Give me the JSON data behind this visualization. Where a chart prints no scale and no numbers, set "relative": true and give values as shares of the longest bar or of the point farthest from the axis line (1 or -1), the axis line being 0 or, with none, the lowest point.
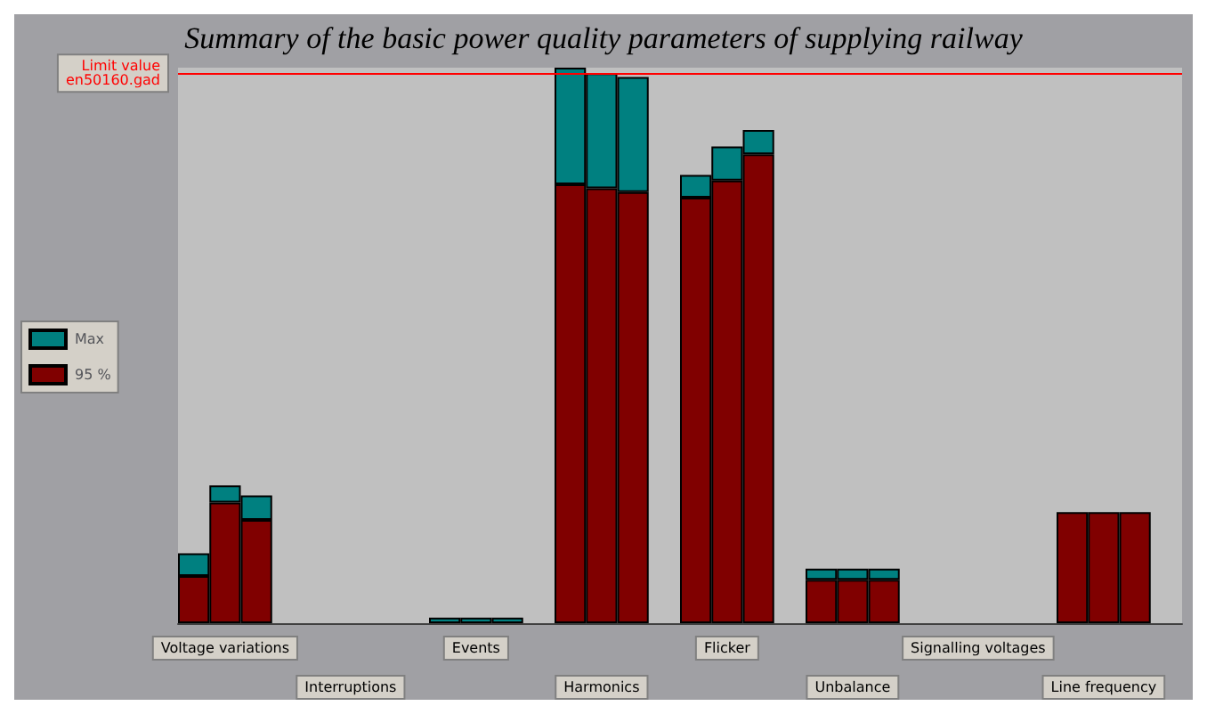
{
  "chart_data": {
    "type": "bar",
    "title": "Summary of the basic power quality parameters of supplying railway",
    "relative": true,
    "stacked": true,
    "legend": "left",
    "categories": [
      null,
      "Voltage variations",
      null,
      null,
      null,
      "Interruptions",
      null,
      null,
      null,
      "Events",
      null,
      null,
      null,
      "Harmonics",
      null,
      null,
      null,
      "Flicker",
      null,
      null,
      null,
      "Unbalance",
      null,
      null,
      null,
      "Signalling voltages",
      null,
      null,
      null,
      "Line frequency",
      null,
      null
    ],
    "series": [
      {
        "name": "95 %",
        "color": "#800000",
        "values": [
          0.085,
          0.217,
          0.186,
          null,
          null,
          null,
          null,
          null,
          null,
          null,
          null,
          null,
          0.79,
          0.783,
          0.776,
          null,
          0.766,
          0.797,
          0.844,
          null,
          0.078,
          0.078,
          0.078,
          null,
          null,
          null,
          null,
          null,
          0.2,
          0.2,
          0.2,
          null
        ]
      },
      {
        "name": "Max",
        "color": "#008080",
        "values": [
          0.041,
          0.031,
          0.044,
          null,
          null,
          null,
          null,
          null,
          0.01,
          0.01,
          0.01,
          null,
          0.21,
          0.207,
          0.207,
          null,
          0.041,
          0.061,
          0.044,
          null,
          0.02,
          0.02,
          0.02,
          null,
          null,
          null,
          null,
          null,
          null,
          null,
          null,
          null
        ]
      }
    ],
    "ref_lines": [
      {
        "axis": "y",
        "value": 0.993,
        "label": "Limit value\nen50160.gad",
        "color": "#ff0000"
      }
    ]
  }
}
